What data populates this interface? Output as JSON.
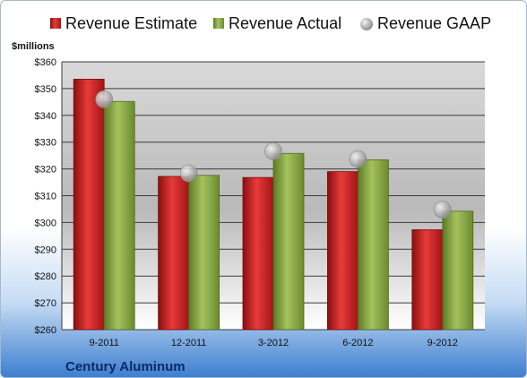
{
  "chart_data": {
    "type": "bar",
    "ylabel": "$millions",
    "company": "Century Aluminum",
    "categories": [
      "9-2011",
      "12-2011",
      "3-2012",
      "6-2012",
      "9-2012"
    ],
    "series": [
      {
        "name": "Revenue Estimate",
        "kind": "bar",
        "color": "#d42a2a",
        "values": [
          353.5,
          317.2,
          316.8,
          319.0,
          297.3
        ]
      },
      {
        "name": "Revenue Actual",
        "kind": "bar",
        "color": "#8fb04a",
        "values": [
          345.2,
          317.6,
          325.8,
          323.4,
          304.2
        ]
      },
      {
        "name": "Revenue GAAP",
        "kind": "marker",
        "color": "#b8b8b8",
        "values": [
          346.0,
          318.4,
          326.6,
          323.7,
          304.8
        ]
      }
    ],
    "ylim": [
      260,
      360
    ],
    "yticks": [
      "$260",
      "$270",
      "$280",
      "$290",
      "$300",
      "$310",
      "$320",
      "$330",
      "$340",
      "$350",
      "$360"
    ],
    "grid": true,
    "legend": "top"
  }
}
